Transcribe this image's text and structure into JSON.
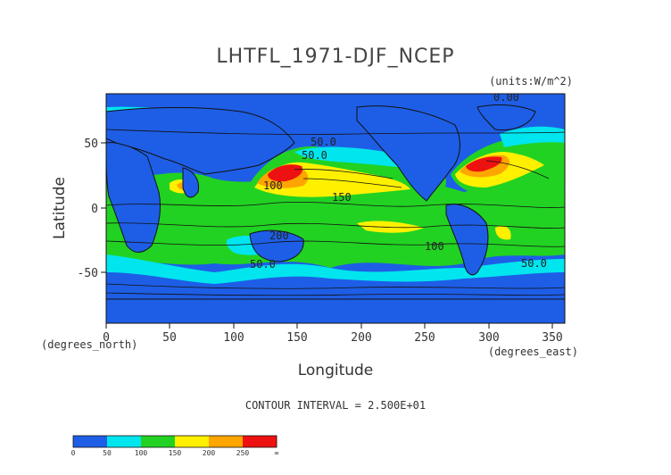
{
  "map": {
    "title": "LHTFL_1971-DJF_NCEP",
    "units": "(units:W/m^2)",
    "xlabel": "Longitude",
    "ylabel": "Latitude",
    "x_unit_note": "(degrees_east)",
    "y_unit_note": "(degrees_north)",
    "x_ticks": [
      "0",
      "50",
      "100",
      "150",
      "200",
      "250",
      "300",
      "350"
    ],
    "y_ticks": [
      "50",
      "0",
      "-50"
    ],
    "contour_interval_text": "CONTOUR INTERVAL = 2.500E+01",
    "contour_labels": [
      "0.00",
      "50.0",
      "50.0",
      "100",
      "150",
      "200",
      "50.0",
      "100",
      "50.0"
    ],
    "colorbar": {
      "labels": [
        "0",
        "50",
        "100",
        "150",
        "200",
        "250",
        "∞"
      ],
      "colors": [
        "#1e5ee6",
        "#1e5ee6",
        "#00e5ee",
        "#00e5ee",
        "#22d222",
        "#22d222",
        "#fff000",
        "#fff000",
        "#ffa500",
        "#ffa500",
        "#ee1111",
        "#ee1111"
      ]
    }
  },
  "chart_data": {
    "type": "heatmap",
    "title": "LHTFL_1971-DJF_NCEP",
    "xlabel": "Longitude",
    "ylabel": "Latitude",
    "xlim": [
      0,
      360
    ],
    "ylim": [
      -90,
      90
    ],
    "levels": [
      0,
      25,
      50,
      75,
      100,
      125,
      150,
      175,
      200,
      225,
      250,
      275,
      300
    ],
    "units": "(units:W/m^2)",
    "colors": {
      "land_low": "#1e5ee6",
      "band_50_100": "#00e5ee",
      "band_100_150": "#22d222",
      "band_150_200": "#fff000",
      "band_200_250": "#ffa500",
      "band_250_plus": "#ee1111"
    }
  }
}
